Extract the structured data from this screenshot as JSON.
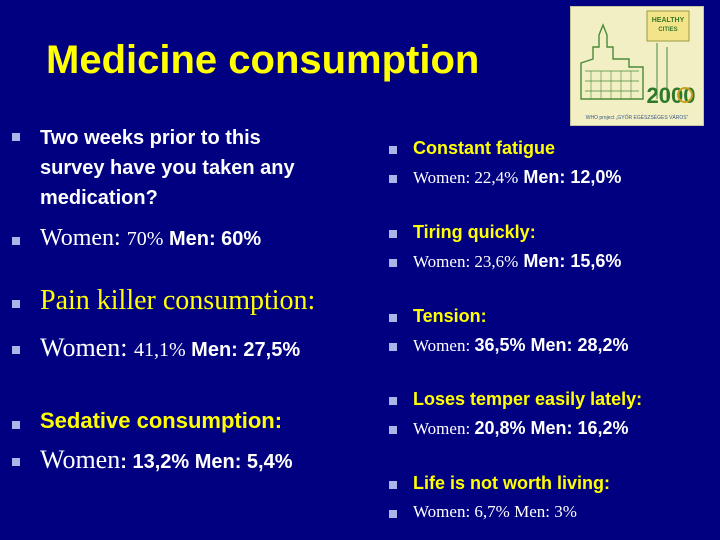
{
  "title": "Medicine consumption",
  "logo": {
    "badge_line1": "HEALTHY",
    "badge_line2": "CITIES",
    "year": "2000",
    "caption": "WHO project „GYŐR EGÉSZSÉGES VÁROS”"
  },
  "left": {
    "q1_line1": "Two weeks prior to this",
    "q1_line2": "survey have you taken any",
    "q1_line3": "medication?",
    "q1_women": "Women: ",
    "q1_women_val": "70%",
    "q1_men": " Men: 60%",
    "pain_label": "Pain killer consumption:",
    "pain_women": "Women: ",
    "pain_women_val": "41,1%",
    "pain_men": " Men: 27,5%",
    "sed_label": "Sedative consumption:",
    "sed_women": "Women",
    "sed_rest": ": 13,2%  Men: 5,4%"
  },
  "right": {
    "fatigue_label": "Constant fatigue",
    "fatigue_women": "Women:  22,4%",
    "fatigue_men": "  Men: 12,0%",
    "tiring_label": "Tiring quickly:",
    "tiring_women": "Women: 23,6%",
    "tiring_men": "  Men: 15,6%",
    "tension_label": "Tension:",
    "tension_women": "Women: ",
    "tension_rest": "36,5%  Men: 28,2%",
    "temper_label": "Loses temper easily lately:",
    "temper_women": "Women: ",
    "temper_rest": "20,8%   Men: 16,2%",
    "life_label": "Life is not worth living:",
    "life_text": "Women: 6,7%  Men: 3%"
  }
}
